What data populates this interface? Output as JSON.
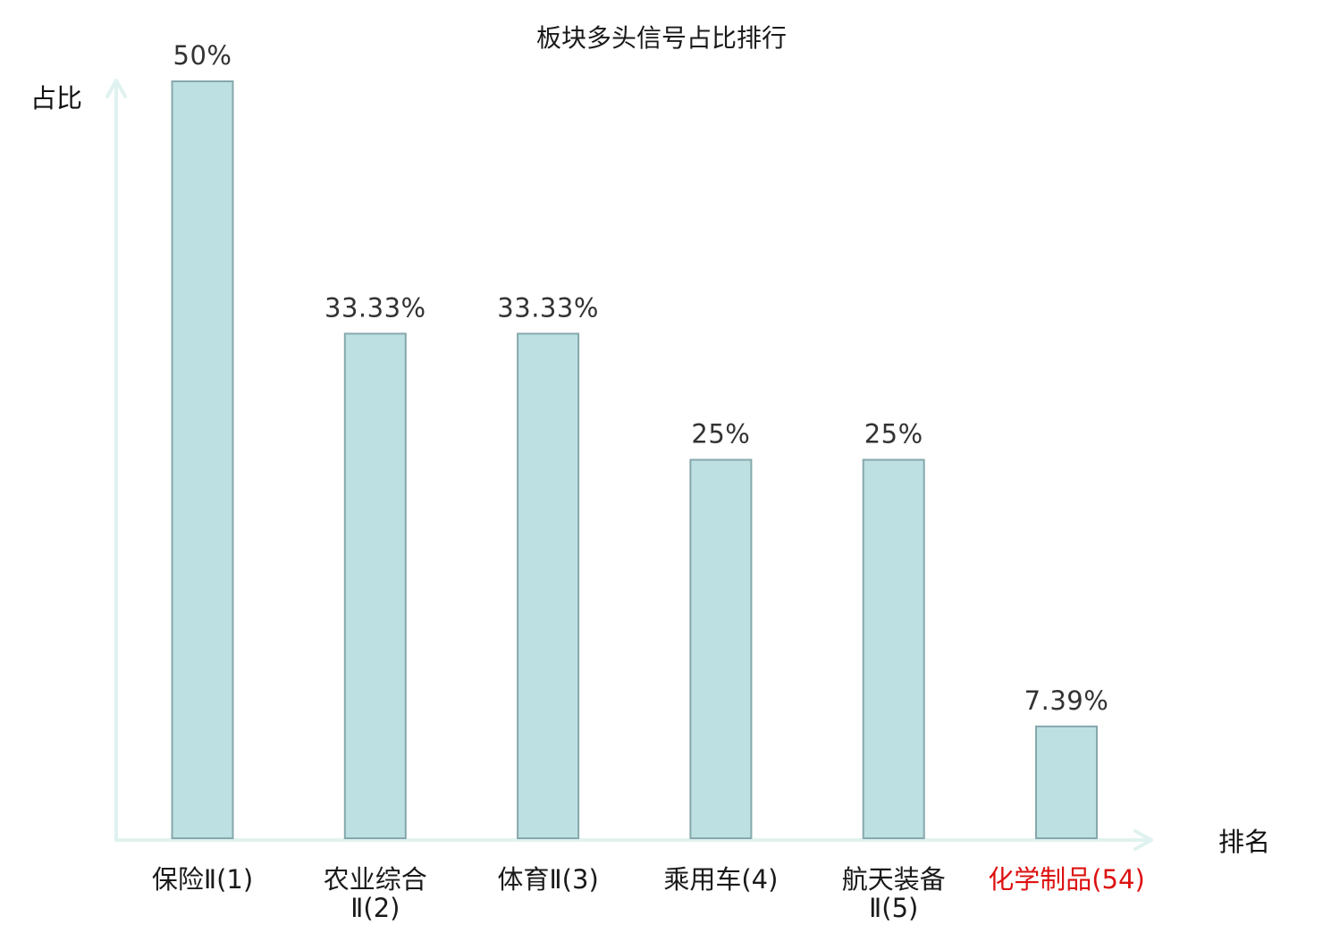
{
  "chart_data": {
    "type": "bar",
    "title": "板块多头信号占比排行",
    "ylabel": "占比",
    "xlabel": "排名",
    "ylim": [
      0,
      50
    ],
    "grid": false,
    "categories": [
      {
        "name": "保险",
        "suffix": "Ⅱ(1)",
        "lines": [
          "保险Ⅱ(1)"
        ],
        "highlight": false
      },
      {
        "name": "农业综合",
        "suffix": "Ⅱ(2)",
        "lines": [
          "农业综合",
          "Ⅱ(2)"
        ],
        "highlight": false
      },
      {
        "name": "体育",
        "suffix": "Ⅱ(3)",
        "lines": [
          "体育Ⅱ(3)"
        ],
        "highlight": false
      },
      {
        "name": "乘用车",
        "suffix": "(4)",
        "lines": [
          "乘用车(4)"
        ],
        "highlight": false
      },
      {
        "name": "航天装备",
        "suffix": "Ⅱ(5)",
        "lines": [
          "航天装备",
          "Ⅱ(5)"
        ],
        "highlight": false
      },
      {
        "name": "化学制品",
        "suffix": "(54)",
        "lines": [
          "化学制品(54)"
        ],
        "highlight": true
      }
    ],
    "values": [
      50,
      33.33,
      33.33,
      25,
      25,
      7.39
    ],
    "value_labels": [
      "50%",
      "33.33%",
      "33.33%",
      "25%",
      "25%",
      "7.39%"
    ],
    "colors": {
      "bar_fill": "#bde0e3",
      "bar_stroke": "#86a8ab",
      "axis": "#dff2ef",
      "highlight": "#dd1111"
    }
  }
}
